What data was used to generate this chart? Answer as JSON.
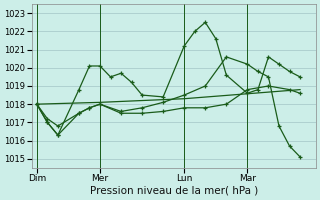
{
  "bg_color": "#cceee8",
  "grid_color": "#aacccc",
  "line_color": "#1a5c1a",
  "title": "Pression niveau de la mer( hPa )",
  "ylim": [
    1014.5,
    1023.5
  ],
  "yticks": [
    1015,
    1016,
    1017,
    1018,
    1019,
    1020,
    1021,
    1022,
    1023
  ],
  "xtick_labels": [
    "Dim",
    "Mer",
    "Lun",
    "Mar"
  ],
  "xtick_positions": [
    0,
    6,
    14,
    20
  ],
  "vline_positions": [
    0,
    6,
    14,
    20
  ],
  "xmax": 26,
  "series1_x": [
    0,
    1,
    2,
    4,
    5,
    6,
    7,
    8,
    9,
    10,
    12,
    14,
    15,
    16,
    17,
    18,
    20,
    21,
    22,
    23,
    24,
    25
  ],
  "series1_y": [
    1018.0,
    1017.0,
    1016.3,
    1018.8,
    1020.1,
    1020.1,
    1019.5,
    1019.7,
    1019.2,
    1018.5,
    1018.4,
    1021.2,
    1022.0,
    1022.5,
    1021.6,
    1019.6,
    1018.6,
    1018.8,
    1020.6,
    1020.2,
    1019.8,
    1019.5
  ],
  "series2_x": [
    0,
    1,
    2,
    4,
    5,
    6,
    8,
    10,
    12,
    14,
    16,
    18,
    20,
    22,
    24,
    25
  ],
  "series2_y": [
    1018.0,
    1017.2,
    1016.8,
    1017.5,
    1017.8,
    1018.0,
    1017.5,
    1017.5,
    1017.6,
    1017.8,
    1017.8,
    1018.0,
    1018.8,
    1019.0,
    1018.8,
    1018.6
  ],
  "series3_x": [
    0,
    6,
    14,
    25
  ],
  "series3_y": [
    1018.0,
    1018.1,
    1018.3,
    1018.8
  ],
  "series4_x": [
    0,
    1,
    2,
    4,
    5,
    6,
    8,
    10,
    12,
    14,
    16,
    18,
    20,
    21,
    22,
    23,
    24,
    25
  ],
  "series4_y": [
    1018.0,
    1017.0,
    1016.3,
    1017.5,
    1017.8,
    1018.0,
    1017.6,
    1017.8,
    1018.1,
    1018.5,
    1019.0,
    1020.6,
    1020.2,
    1019.8,
    1019.5,
    1016.8,
    1015.7,
    1015.1
  ]
}
